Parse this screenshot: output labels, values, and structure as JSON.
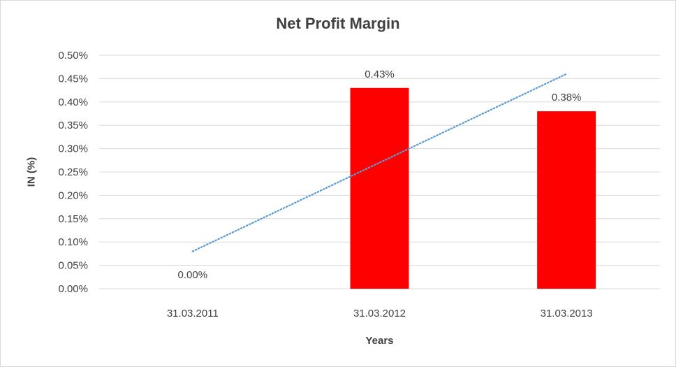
{
  "chart_data": {
    "type": "bar",
    "title": "Net Profit Margin",
    "xlabel": "Years",
    "ylabel": "IN (%)",
    "categories": [
      "31.03.2011",
      "31.03.2012",
      "31.03.2013"
    ],
    "values": [
      0.0,
      0.43,
      0.38
    ],
    "data_labels": [
      "0.00%",
      "0.43%",
      "0.38%"
    ],
    "ylim": [
      0,
      0.5
    ],
    "y_ticks": [
      0.0,
      0.05,
      0.1,
      0.15,
      0.2,
      0.25,
      0.3,
      0.35,
      0.4,
      0.45,
      0.5
    ],
    "y_tick_labels": [
      "0.00%",
      "0.05%",
      "0.10%",
      "0.15%",
      "0.20%",
      "0.25%",
      "0.30%",
      "0.35%",
      "0.40%",
      "0.45%",
      "0.50%"
    ],
    "trendline": {
      "type": "linear",
      "style": "dotted",
      "color": "#5b9bd5"
    },
    "grid": true,
    "legend": "none",
    "bar_color": "#ff0000",
    "grid_color": "#d9d9d9"
  }
}
